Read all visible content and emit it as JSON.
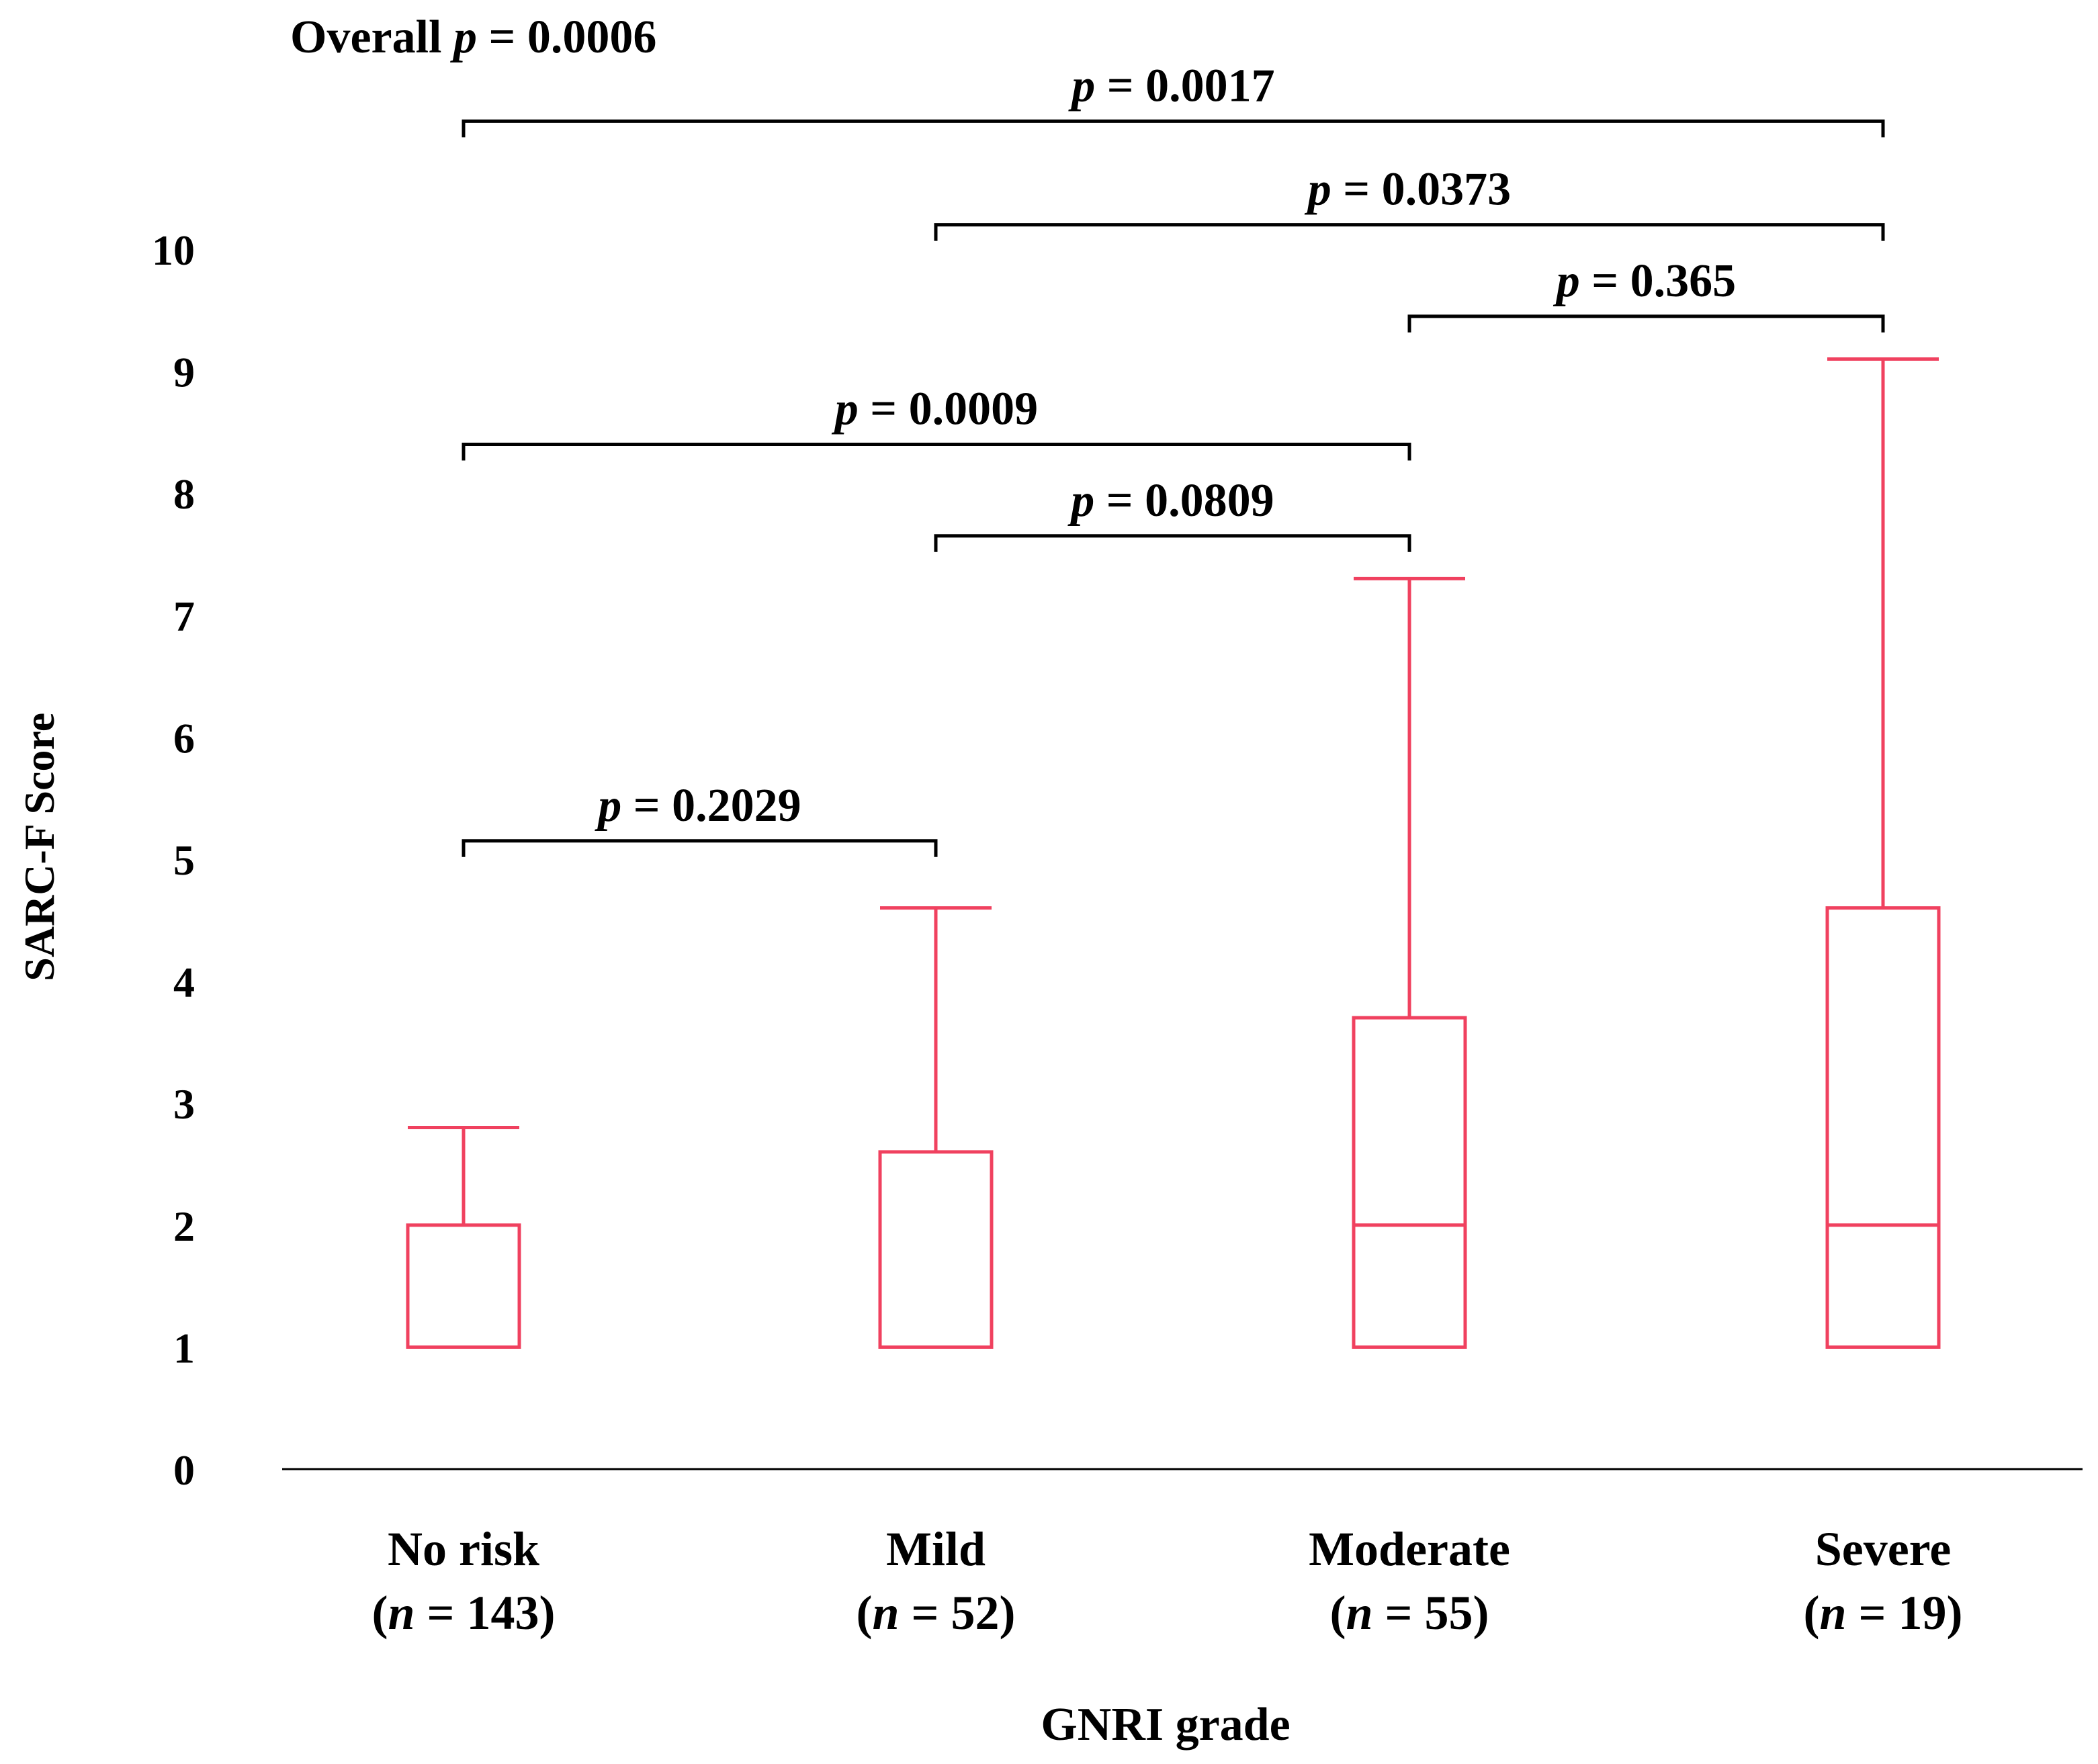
{
  "chart_data": {
    "type": "box",
    "xlabel": "GNRI grade",
    "ylabel": "SARC-F Score",
    "ylim": [
      0,
      10
    ],
    "yticks": [
      "0",
      "1",
      "2",
      "3",
      "4",
      "5",
      "6",
      "7",
      "8",
      "9",
      "10"
    ],
    "box_color": "#f0415f",
    "categories": [
      {
        "name": "No risk",
        "n_prefix": "(",
        "n_symbol": "n",
        "n_text": " = 143)",
        "min": 1,
        "q1": 1,
        "median": 1,
        "q3": 2,
        "max": 2.8
      },
      {
        "name": "Mild",
        "n_prefix": "(",
        "n_symbol": "n",
        "n_text": " = 52)",
        "min": 1,
        "q1": 1,
        "median": 1,
        "q3": 2.6,
        "max": 4.6
      },
      {
        "name": "Moderate",
        "n_prefix": "(",
        "n_symbol": "n",
        "n_text": " = 55)",
        "min": 1,
        "q1": 1,
        "median": 2,
        "q3": 3.7,
        "max": 7.3
      },
      {
        "name": "Severe",
        "n_prefix": "(",
        "n_symbol": "n",
        "n_text": " = 19)",
        "min": 1,
        "q1": 1,
        "median": 2,
        "q3": 4.6,
        "max": 9.1
      }
    ],
    "overall": {
      "prefix": "Overall ",
      "symbol": "p",
      "text": " = 0.0006"
    },
    "comparisons": [
      {
        "from": 0,
        "to": 3,
        "y": 11.05,
        "symbol": "p",
        "text": " = 0.0017"
      },
      {
        "from": 1,
        "to": 3,
        "y": 10.2,
        "symbol": "p",
        "text": " = 0.0373"
      },
      {
        "from": 2,
        "to": 3,
        "y": 9.45,
        "symbol": "p",
        "text": " = 0.365"
      },
      {
        "from": 0,
        "to": 2,
        "y": 8.4,
        "symbol": "p",
        "text": " = 0.0009"
      },
      {
        "from": 1,
        "to": 2,
        "y": 7.65,
        "symbol": "p",
        "text": " = 0.0809"
      },
      {
        "from": 0,
        "to": 1,
        "y": 5.15,
        "symbol": "p",
        "text": " = 0.2029"
      }
    ]
  }
}
